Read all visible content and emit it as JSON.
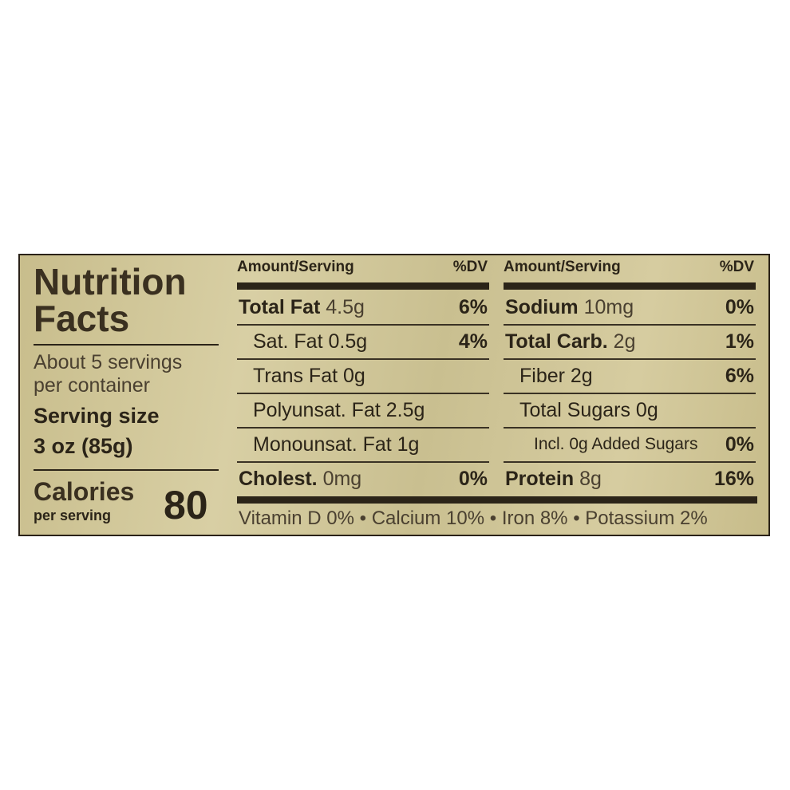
{
  "title": [
    "Nutrition",
    "Facts"
  ],
  "servings": [
    "About 5 servings",
    "per container"
  ],
  "serving_size_label": "Serving size",
  "serving_size_value": "3 oz (85g)",
  "calories_label": "Calories",
  "calories_sub": "per serving",
  "calories_value": "80",
  "header": {
    "amount": "Amount/Serving",
    "dv": "%DV"
  },
  "left_rows": [
    {
      "name": "Total Fat",
      "amount": "4.5g",
      "dv": "6%",
      "bold": true
    },
    {
      "name": "Sat. Fat 0.5g",
      "amount": "",
      "dv": "4%"
    },
    {
      "name": "Trans Fat 0g",
      "amount": "",
      "dv": ""
    },
    {
      "name": "Polyunsat. Fat 2.5g",
      "amount": "",
      "dv": ""
    },
    {
      "name": "Monounsat. Fat 1g",
      "amount": "",
      "dv": ""
    },
    {
      "name": "Cholest.",
      "amount": "0mg",
      "dv": "0%",
      "bold": true
    }
  ],
  "right_rows": [
    {
      "name": "Sodium",
      "amount": "10mg",
      "dv": "0%",
      "bold": true
    },
    {
      "name": "Total Carb.",
      "amount": "2g",
      "dv": "1%",
      "bold": true
    },
    {
      "name": "Fiber 2g",
      "amount": "",
      "dv": "6%"
    },
    {
      "name": "Total Sugars 0g",
      "amount": "",
      "dv": ""
    },
    {
      "name": "Incl. 0g Added Sugars",
      "amount": "",
      "dv": "0%"
    },
    {
      "name": "Protein",
      "amount": "8g",
      "dv": "16%",
      "bold": true
    }
  ],
  "footer": "Vitamin D 0% • Calcium 10% • Iron 8% • Potassium 2%"
}
